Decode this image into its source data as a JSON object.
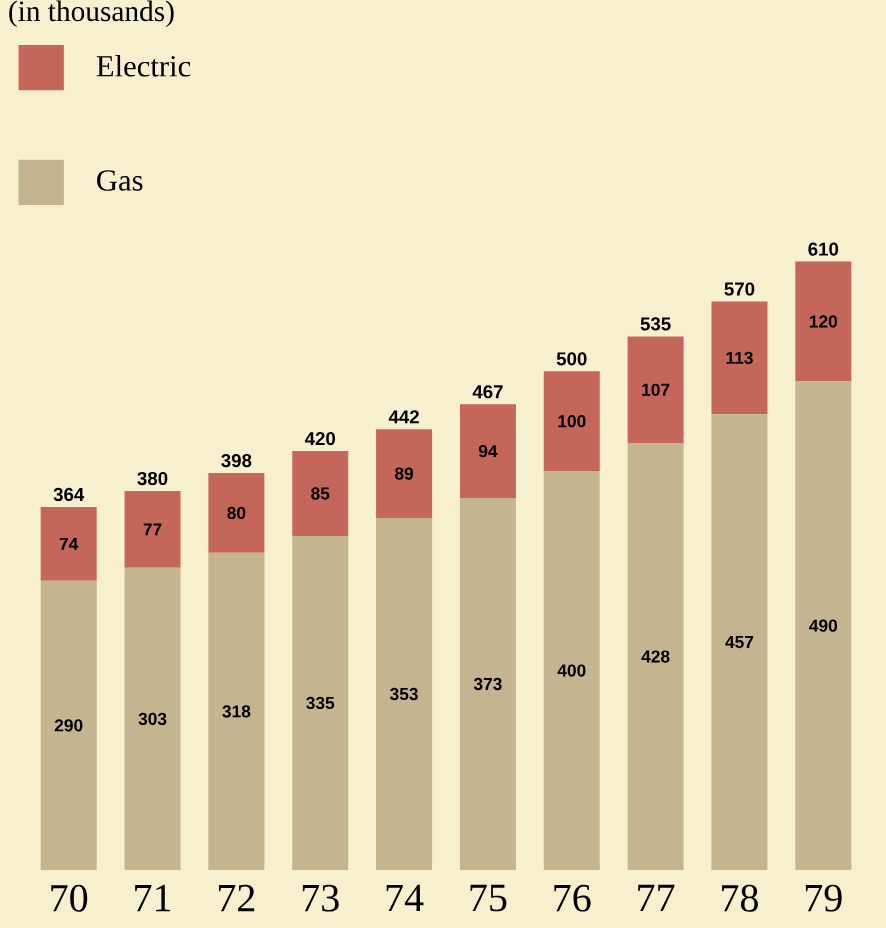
{
  "chart_data": {
    "type": "bar",
    "title": "(in thousands)",
    "categories": [
      "70",
      "71",
      "72",
      "73",
      "74",
      "75",
      "76",
      "77",
      "78",
      "79"
    ],
    "stacked": true,
    "data_labels": true,
    "legend": "top left",
    "series": [
      {
        "name": "Gas",
        "color": "#c4b48f",
        "values": [
          290,
          303,
          318,
          335,
          353,
          373,
          400,
          428,
          457,
          490
        ]
      },
      {
        "name": "Electric",
        "color": "#c4665a",
        "values": [
          74,
          77,
          80,
          85,
          89,
          94,
          100,
          107,
          113,
          120
        ]
      }
    ],
    "totals": [
      "364",
      "380",
      "398",
      "420",
      "442",
      "467",
      "500",
      "535",
      "570",
      "610"
    ]
  }
}
